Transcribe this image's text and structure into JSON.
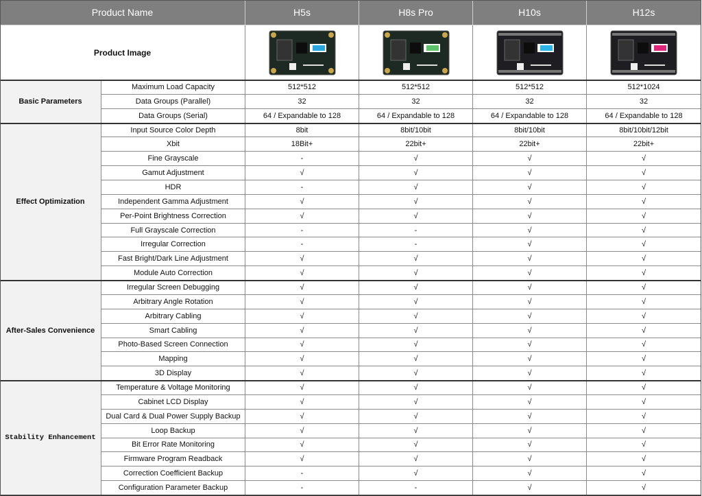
{
  "header": {
    "product_name": "Product Name",
    "product_image": "Product Image",
    "products": [
      "H5s",
      "H8s Pro",
      "H10s",
      "H12s"
    ]
  },
  "groups": [
    {
      "name": "Basic Parameters",
      "rows": [
        {
          "feature": "Maximum Load Capacity",
          "values": [
            "512*512",
            "512*512",
            "512*512",
            "512*1024"
          ]
        },
        {
          "feature": "Data Groups (Parallel)",
          "values": [
            "32",
            "32",
            "32",
            "32"
          ]
        },
        {
          "feature": "Data Groups (Serial)",
          "values": [
            "64 / Expandable to 128",
            "64 / Expandable to 128",
            "64 / Expandable to 128",
            "64 / Expandable to 128"
          ]
        }
      ]
    },
    {
      "name": "Effect Optimization",
      "rows": [
        {
          "feature": "Input Source Color Depth",
          "values": [
            "8bit",
            "8bit/10bit",
            "8bit/10bit",
            "8bit/10bit/12bit"
          ]
        },
        {
          "feature": "Xbit",
          "values": [
            "18Bit+",
            "22bit+",
            "22bit+",
            "22bit+"
          ]
        },
        {
          "feature": "Fine Grayscale",
          "values": [
            "-",
            "√",
            "√",
            "√"
          ]
        },
        {
          "feature": "Gamut Adjustment",
          "values": [
            "√",
            "√",
            "√",
            "√"
          ]
        },
        {
          "feature": "HDR",
          "values": [
            "-",
            "√",
            "√",
            "√"
          ]
        },
        {
          "feature": "Independent Gamma Adjustment",
          "values": [
            "√",
            "√",
            "√",
            "√"
          ]
        },
        {
          "feature": "Per-Point Brightness Correction",
          "values": [
            "√",
            "√",
            "√",
            "√"
          ]
        },
        {
          "feature": "Full Grayscale Correction",
          "values": [
            "-",
            "-",
            "√",
            "√"
          ]
        },
        {
          "feature": "Irregular Correction",
          "values": [
            "-",
            "-",
            "√",
            "√"
          ]
        },
        {
          "feature": "Fast Bright/Dark Line Adjustment",
          "values": [
            "√",
            "√",
            "√",
            "√"
          ]
        },
        {
          "feature": "Module Auto Correction",
          "values": [
            "√",
            "√",
            "√",
            "√"
          ]
        }
      ]
    },
    {
      "name": "After-Sales Convenience",
      "rows": [
        {
          "feature": "Irregular Screen Debugging",
          "values": [
            "√",
            "√",
            "√",
            "√"
          ]
        },
        {
          "feature": "Arbitrary Angle Rotation",
          "values": [
            "√",
            "√",
            "√",
            "√"
          ]
        },
        {
          "feature": "Arbitrary Cabling",
          "values": [
            "√",
            "√",
            "√",
            "√"
          ]
        },
        {
          "feature": "Smart Cabling",
          "values": [
            "√",
            "√",
            "√",
            "√"
          ]
        },
        {
          "feature": "Photo-Based Screen Connection",
          "values": [
            "√",
            "√",
            "√",
            "√"
          ]
        },
        {
          "feature": "Mapping",
          "values": [
            "√",
            "√",
            "√",
            "√"
          ]
        },
        {
          "feature": "3D Display",
          "values": [
            "√",
            "√",
            "√",
            "√"
          ]
        }
      ]
    },
    {
      "name": "Stability Enhancement",
      "rows": [
        {
          "feature": "Temperature & Voltage Monitoring",
          "values": [
            "√",
            "√",
            "√",
            "√"
          ]
        },
        {
          "feature": "Cabinet LCD Display",
          "values": [
            "√",
            "√",
            "√",
            "√"
          ]
        },
        {
          "feature": "Dual Card & Dual Power Supply Backup",
          "values": [
            "√",
            "√",
            "√",
            "√"
          ]
        },
        {
          "feature": "Loop Backup",
          "values": [
            "√",
            "√",
            "√",
            "√"
          ]
        },
        {
          "feature": "Bit Error Rate Monitoring",
          "values": [
            "√",
            "√",
            "√",
            "√"
          ]
        },
        {
          "feature": "Firmware Program Readback",
          "values": [
            "√",
            "√",
            "√",
            "√"
          ]
        },
        {
          "feature": "Correction Coefficient Backup",
          "values": [
            "-",
            "√",
            "√",
            "√"
          ]
        },
        {
          "feature": "Configuration Parameter Backup",
          "values": [
            "-",
            "-",
            "√",
            "√"
          ]
        }
      ]
    }
  ]
}
